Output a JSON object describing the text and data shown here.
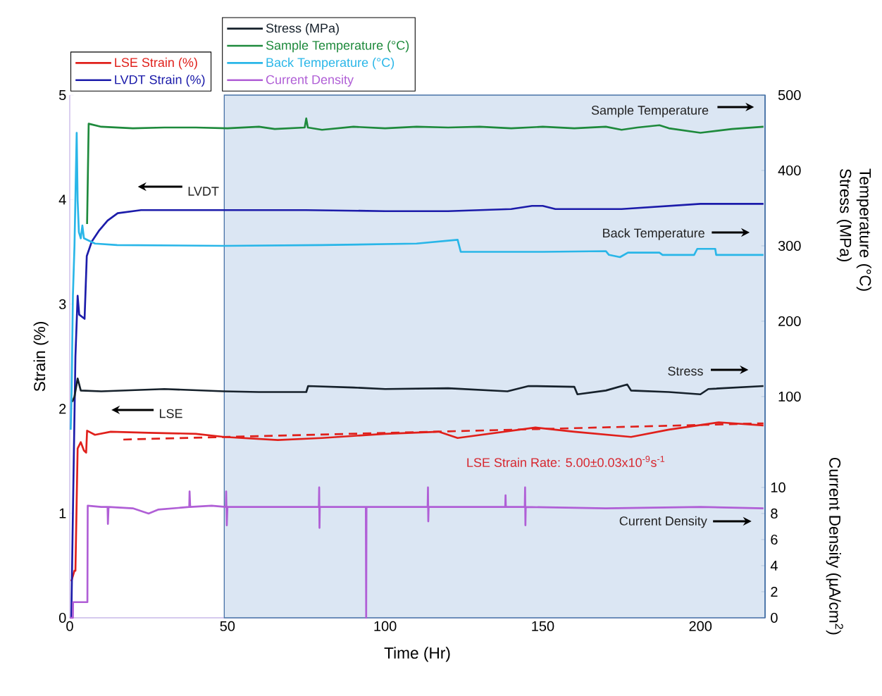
{
  "chart_data": {
    "type": "line",
    "xlabel": "Time (Hr)",
    "ylabel": "Strain (%)",
    "y2label": "Temperature (°C) Stress (MPa)",
    "y3label": "Current Density (µA/cm$^{2}$)",
    "xlim": [
      0,
      220.5
    ],
    "xticks": [
      0,
      50,
      100,
      150,
      200
    ],
    "ylim": [
      0,
      5
    ],
    "yticks": [
      0,
      1,
      2,
      3,
      4,
      5
    ],
    "y2lim": [
      -193.5,
      500
    ],
    "y2ticks": [
      100,
      200,
      300,
      400,
      500
    ],
    "y3lim": [
      0,
      40.1
    ],
    "y3ticks": [
      0,
      2,
      4,
      6,
      8,
      10
    ],
    "legend": "top left",
    "bands": [
      {
        "axis": "x",
        "from": 49,
        "to": 220.5,
        "color": "#dbe6f3"
      }
    ],
    "annotations": [
      "Sample Temperature",
      "LVDT",
      "Back Temperature",
      "Stress",
      "LSE",
      "Current Density",
      "LSE Strain Rate: 5.00±0.03x10$^{-9}$s$^{-1}$"
    ],
    "series": [
      {
        "name": "LSE Strain (%)",
        "color": "#e0201b",
        "axis": "y",
        "x": [
          0.5,
          1.5,
          1.8,
          2.5,
          3.5,
          4.5,
          5.2,
          5.5,
          8,
          13,
          25,
          40,
          49,
          66,
          80,
          100,
          117,
          123,
          147.7,
          160,
          178,
          190,
          205.8,
          220
        ],
        "values": [
          0.35,
          0.45,
          0.45,
          1.62,
          1.68,
          1.6,
          1.58,
          1.79,
          1.75,
          1.78,
          1.77,
          1.76,
          1.73,
          1.7,
          1.72,
          1.76,
          1.78,
          1.72,
          1.82,
          1.78,
          1.73,
          1.8,
          1.87,
          1.84
        ]
      },
      {
        "name": "LVDT Strain (%)",
        "color": "#1c1caa",
        "axis": "y",
        "x": [
          0.5,
          1,
          1.8,
          2.5,
          3,
          4.7,
          5.4,
          7,
          9.2,
          12,
          15.2,
          22.6,
          50,
          75,
          100,
          120,
          140,
          146.6,
          150,
          154,
          175,
          200,
          220
        ],
        "values": [
          0,
          1.0,
          2.5,
          3.08,
          2.9,
          2.86,
          3.46,
          3.6,
          3.7,
          3.8,
          3.87,
          3.9,
          3.9,
          3.9,
          3.89,
          3.89,
          3.91,
          3.94,
          3.94,
          3.91,
          3.91,
          3.96,
          3.96
        ]
      },
      {
        "name": "Stress (MPa)",
        "color": "#16212b",
        "axis": "y2",
        "x": [
          0.8,
          1.5,
          2.5,
          3.5,
          10,
          30,
          49,
          60,
          75,
          75.6,
          90,
          100,
          120,
          138.8,
          145.5,
          160,
          161,
          170,
          176.8,
          178,
          190,
          200,
          202.5,
          220
        ],
        "values": [
          93,
          100,
          124,
          108,
          107,
          110,
          107,
          106,
          106,
          114,
          112,
          110,
          111,
          107,
          114,
          113,
          103,
          108,
          116,
          108,
          106,
          103,
          110,
          114
        ]
      },
      {
        "name": "Sample Temperature (°C)",
        "color": "#1e8a3c",
        "axis": "y2",
        "x": [
          5.5,
          6,
          10,
          20,
          30,
          40,
          50,
          60,
          65,
          74.5,
          75,
          75.5,
          80,
          90,
          100,
          110,
          120,
          130,
          140,
          150,
          160,
          170,
          175,
          180,
          187,
          190,
          200,
          210,
          220
        ],
        "values": [
          329,
          462,
          458,
          456,
          457,
          457,
          456,
          458,
          455,
          457,
          469,
          457,
          454,
          458,
          456,
          458,
          457,
          458,
          456,
          458,
          456,
          458,
          454,
          457,
          460,
          456,
          450,
          455,
          458
        ]
      },
      {
        "name": "Back Temperature (°C)",
        "color": "#29b6e8",
        "axis": "y2",
        "x": [
          0.3,
          0.6,
          1.0,
          1.5,
          2.2,
          2.5,
          2.9,
          3.5,
          4,
          4.5,
          8,
          15,
          49,
          80,
          110,
          123,
          124,
          150,
          170,
          171,
          174.5,
          177,
          187,
          188,
          198,
          199,
          204.7,
          205,
          220
        ],
        "values": [
          56,
          110,
          234,
          300,
          450,
          360,
          318,
          310,
          327,
          310,
          303,
          301,
          300,
          301,
          303,
          308,
          292,
          292,
          293,
          288,
          285,
          291,
          291,
          288,
          288,
          296,
          296,
          288,
          288
        ]
      },
      {
        "name": "Current Density",
        "color": "#b05fd6",
        "axis": "y3",
        "x": [
          0,
          1,
          1.05,
          5.6,
          5.7,
          10,
          12,
          12.1,
          12.3,
          20,
          25,
          28,
          37.9,
          38,
          38.2,
          45,
          49.5,
          49.6,
          49.8,
          50,
          79,
          79.1,
          79.2,
          79.3,
          93.9,
          94,
          94.1,
          113.5,
          113.6,
          113.7,
          113.8,
          138.1,
          138.2,
          138.3,
          144.3,
          144.4,
          144.5,
          144.6,
          170,
          200,
          220
        ],
        "values": [
          0,
          0,
          1.2,
          1.2,
          8.6,
          8.5,
          8.5,
          7.2,
          8.5,
          8.4,
          8.0,
          8.3,
          8.5,
          9.7,
          8.5,
          8.6,
          8.5,
          9.7,
          7.1,
          8.5,
          8.5,
          10,
          6.9,
          8.5,
          8.5,
          0,
          8.5,
          8.5,
          10,
          7.4,
          8.5,
          8.5,
          9.4,
          8.5,
          8.5,
          10,
          7.1,
          8.5,
          8.4,
          8.5,
          8.4
        ]
      },
      {
        "type": "line",
        "color": "#e0201b",
        "axis": "y",
        "line_style": "dashed",
        "x": [
          17,
          220
        ],
        "values": [
          1.705,
          1.86
        ]
      }
    ]
  }
}
